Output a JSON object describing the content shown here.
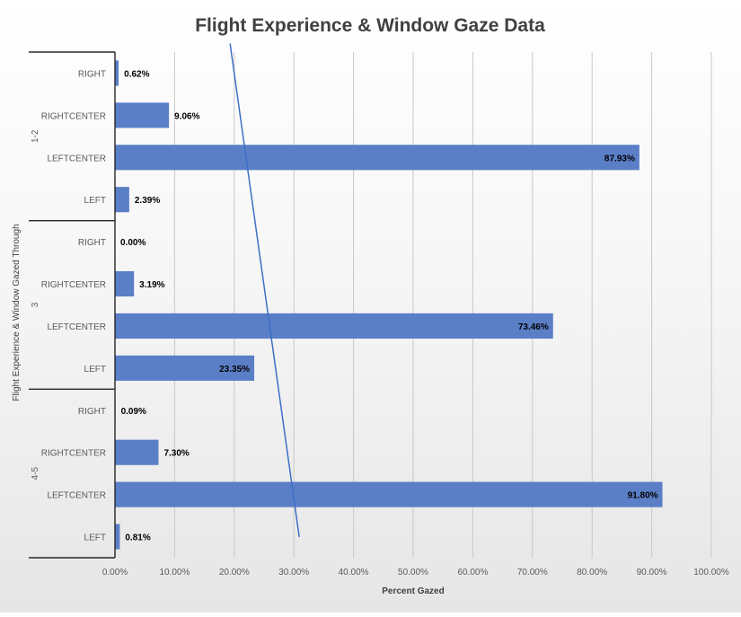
{
  "chart_data": {
    "type": "bar",
    "orientation": "horizontal",
    "title": "Flight Experience & Window Gaze Data",
    "xlabel": "Percent Gazed",
    "ylabel": "Flight Experience & Window Gazed Through",
    "xlim": [
      0,
      100
    ],
    "xticks": [
      "0.00%",
      "10.00%",
      "20.00%",
      "30.00%",
      "40.00%",
      "50.00%",
      "60.00%",
      "70.00%",
      "80.00%",
      "90.00%",
      "100.00%"
    ],
    "grid": true,
    "bar_color": "#5b7fc7",
    "line_color": "#3f6ec6",
    "groups": [
      {
        "name": "1-2",
        "categories": [
          "RIGHT",
          "RIGHTCENTER",
          "LEFTCENTER",
          "LEFT"
        ],
        "values": [
          0.62,
          9.06,
          87.93,
          2.39
        ],
        "labels": [
          "0.62%",
          "9.06%",
          "87.93%",
          "2.39%"
        ]
      },
      {
        "name": "3",
        "categories": [
          "RIGHT",
          "RIGHTCENTER",
          "LEFTCENTER",
          "LEFT"
        ],
        "values": [
          0.0,
          3.19,
          73.46,
          23.35
        ],
        "labels": [
          "0.00%",
          "3.19%",
          "73.46%",
          "23.35%"
        ]
      },
      {
        "name": "4-5",
        "categories": [
          "RIGHT",
          "RIGHTCENTER",
          "LEFTCENTER",
          "LEFT"
        ],
        "values": [
          0.09,
          7.3,
          91.8,
          0.81
        ],
        "labels": [
          "0.09%",
          "7.30%",
          "91.80%",
          "0.81%"
        ]
      }
    ],
    "trendline": {
      "start": 19.3,
      "end": 30.9
    }
  }
}
